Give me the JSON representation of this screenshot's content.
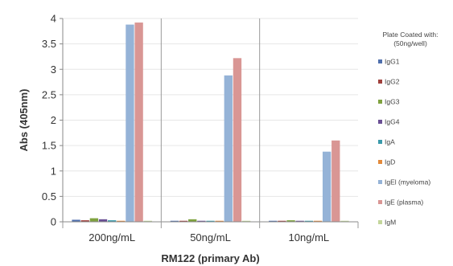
{
  "chart_data": {
    "type": "bar",
    "title": "",
    "xlabel": "RM122 (primary Ab)",
    "ylabel": "Abs (405nm)",
    "ylim": [
      0,
      4
    ],
    "yticks": [
      "0",
      "0.5",
      "1",
      "1.5",
      "2",
      "2.5",
      "3",
      "3.5",
      "4"
    ],
    "grid": true,
    "legend_position": "right",
    "legend_title_lines": [
      "Plate Coated with:",
      "(50ng/well)"
    ],
    "categories": [
      "200ng/mL",
      "50ng/mL",
      "10ng/mL"
    ],
    "series": [
      {
        "name": "IgG1",
        "color": "#4f6fad",
        "values": [
          0.04,
          0.02,
          0.02
        ]
      },
      {
        "name": "IgG2",
        "color": "#a0403c",
        "values": [
          0.03,
          0.02,
          0.02
        ]
      },
      {
        "name": "IgG3",
        "color": "#7fa23f",
        "values": [
          0.07,
          0.05,
          0.03
        ]
      },
      {
        "name": "IgG4",
        "color": "#6a4f94",
        "values": [
          0.05,
          0.02,
          0.02
        ]
      },
      {
        "name": "IgA",
        "color": "#3a9aab",
        "values": [
          0.03,
          0.02,
          0.02
        ]
      },
      {
        "name": "IgD",
        "color": "#e38a3b",
        "values": [
          0.02,
          0.02,
          0.02
        ]
      },
      {
        "name": "IgEl (myeloma)",
        "color": "#95b3d7",
        "values": [
          3.88,
          2.88,
          1.38
        ]
      },
      {
        "name": "IgE (plasma)",
        "color": "#d99694",
        "values": [
          3.92,
          3.22,
          1.6
        ]
      },
      {
        "name": "IgM",
        "color": "#c3d69b",
        "values": [
          0.02,
          0.02,
          0.02
        ]
      }
    ]
  }
}
